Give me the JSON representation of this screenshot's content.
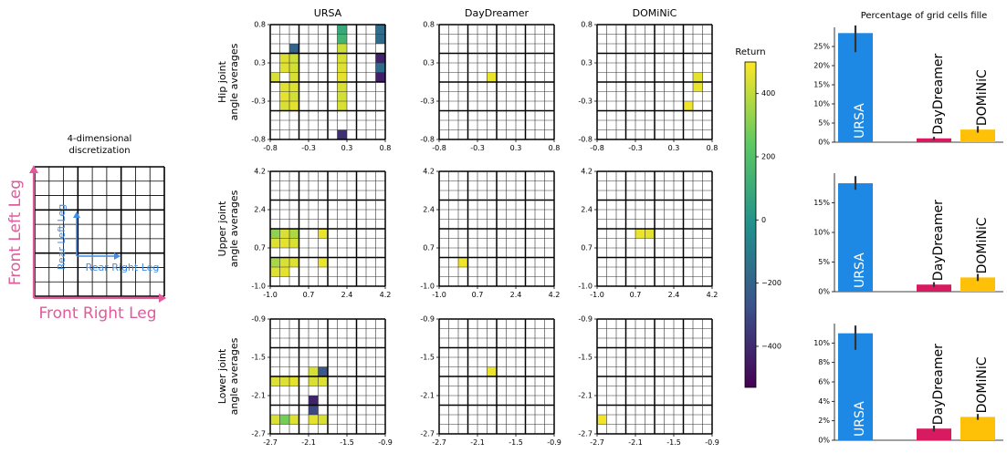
{
  "chart_data": [
    {
      "type": "diagram",
      "title": "4-dimensional discretization",
      "axis_labels": {
        "x": "Front Right Leg",
        "y": "Front Left Leg",
        "inner_x": "Rear Right Leg",
        "inner_y": "Rear Left Leg"
      },
      "grid": {
        "major_divisions": 3,
        "minor_divisions": 3
      }
    },
    {
      "type": "heatmap",
      "columns": [
        "URSA",
        "DayDreamer",
        "DOMiNiC"
      ],
      "grid_size": 12,
      "colorbar": {
        "label": "Return",
        "min": -530,
        "max": 500,
        "ticks": [
          400,
          200,
          0,
          -200,
          -400
        ],
        "colors": [
          "#440154",
          "#3b528b",
          "#21918c",
          "#5ec962",
          "#fde725"
        ]
      },
      "rows": [
        {
          "ylabel": "Hip joint angle averages",
          "xticks": [
            "-0.8",
            "-0.3",
            "0.3",
            "0.8"
          ],
          "yticks": [
            "0.8",
            "0.3",
            "-0.3",
            "-0.8"
          ],
          "cells": {
            "URSA": [
              [
                7,
                0,
                90
              ],
              [
                7,
                1,
                140
              ],
              [
                2,
                2,
                -200
              ],
              [
                2,
                3,
                420
              ],
              [
                1,
                3,
                450
              ],
              [
                0,
                5,
                440
              ],
              [
                1,
                4,
                450
              ],
              [
                2,
                4,
                430
              ],
              [
                2,
                5,
                440
              ],
              [
                1,
                6,
                450
              ],
              [
                1,
                7,
                460
              ],
              [
                1,
                8,
                440
              ],
              [
                2,
                6,
                450
              ],
              [
                2,
                7,
                430
              ],
              [
                2,
                8,
                460
              ],
              [
                7,
                2,
                420
              ],
              [
                7,
                3,
                440
              ],
              [
                7,
                4,
                450
              ],
              [
                7,
                5,
                460
              ],
              [
                7,
                6,
                440
              ],
              [
                7,
                7,
                430
              ],
              [
                7,
                8,
                440
              ],
              [
                7,
                11,
                -380
              ],
              [
                11,
                0,
                -160
              ],
              [
                11,
                1,
                -170
              ],
              [
                11,
                3,
                -420
              ],
              [
                11,
                4,
                -170
              ],
              [
                11,
                5,
                -430
              ]
            ],
            "DayDreamer": [
              [
                5,
                5,
                470
              ]
            ],
            "DOMiNiC": [
              [
                10,
                5,
                460
              ],
              [
                10,
                6,
                470
              ],
              [
                9,
                8,
                480
              ]
            ]
          }
        },
        {
          "ylabel": "Upper joint angle averages",
          "xticks": [
            "-1.0",
            "0.7",
            "2.4",
            "4.2"
          ],
          "yticks": [
            "4.2",
            "2.4",
            "0.7",
            "-1.0"
          ],
          "cells": {
            "URSA": [
              [
                0,
                6,
                320
              ],
              [
                1,
                6,
                440
              ],
              [
                2,
                6,
                370
              ],
              [
                5,
                6,
                470
              ],
              [
                0,
                7,
                450
              ],
              [
                1,
                7,
                460
              ],
              [
                2,
                7,
                440
              ],
              [
                0,
                9,
                360
              ],
              [
                1,
                9,
                440
              ],
              [
                2,
                9,
                450
              ],
              [
                5,
                9,
                470
              ],
              [
                0,
                10,
                450
              ],
              [
                1,
                10,
                460
              ]
            ],
            "DayDreamer": [
              [
                2,
                9,
                480
              ]
            ],
            "DOMiNiC": [
              [
                4,
                6,
                470
              ],
              [
                5,
                6,
                460
              ]
            ]
          }
        },
        {
          "ylabel": "Lower joint angle averages",
          "xticks": [
            "-2.7",
            "-2.1",
            "-1.5",
            "-0.9"
          ],
          "yticks": [
            "-0.9",
            "-1.5",
            "-2.1",
            "-2.7"
          ],
          "cells": {
            "URSA": [
              [
                4,
                5,
                440
              ],
              [
                5,
                5,
                -250
              ],
              [
                0,
                6,
                450
              ],
              [
                1,
                6,
                450
              ],
              [
                2,
                6,
                460
              ],
              [
                4,
                6,
                440
              ],
              [
                5,
                6,
                450
              ],
              [
                4,
                8,
                -420
              ],
              [
                4,
                9,
                -300
              ],
              [
                0,
                10,
                440
              ],
              [
                1,
                10,
                280
              ],
              [
                2,
                10,
                450
              ],
              [
                4,
                10,
                460
              ],
              [
                5,
                10,
                440
              ]
            ],
            "DayDreamer": [
              [
                5,
                5,
                470
              ]
            ],
            "DOMiNiC": [
              [
                0,
                10,
                480
              ]
            ]
          }
        }
      ]
    },
    {
      "type": "bar",
      "title": "Percentage of grid cells fille",
      "categories": [
        "URSA",
        "DayDreamer",
        "DOMiNiC"
      ],
      "colors": [
        "#1e88e5",
        "#d81b60",
        "#ffc107"
      ],
      "panels": [
        {
          "values": [
            28.5,
            1.0,
            3.3
          ],
          "errors": [
            [
              23.5,
              30.5
            ],
            [
              0.6,
              1.4
            ],
            [
              2.5,
              4.2
            ]
          ],
          "ylim": [
            0,
            30
          ],
          "yticks": [
            "0%",
            "5%",
            "10%",
            "15%",
            "20%",
            "25%"
          ]
        },
        {
          "values": [
            18.3,
            1.2,
            2.4
          ],
          "errors": [
            [
              17.2,
              19.5
            ],
            [
              0.8,
              1.6
            ],
            [
              1.8,
              3.0
            ]
          ],
          "ylim": [
            0,
            20
          ],
          "yticks": [
            "0%",
            "5%",
            "10%",
            "15%"
          ]
        },
        {
          "values": [
            11.0,
            1.2,
            2.4
          ],
          "errors": [
            [
              9.3,
              11.8
            ],
            [
              0.9,
              1.5
            ],
            [
              2.1,
              2.7
            ]
          ],
          "ylim": [
            0,
            12
          ],
          "yticks": [
            "0%",
            "2%",
            "4%",
            "6%",
            "8%",
            "10%"
          ]
        }
      ]
    }
  ]
}
